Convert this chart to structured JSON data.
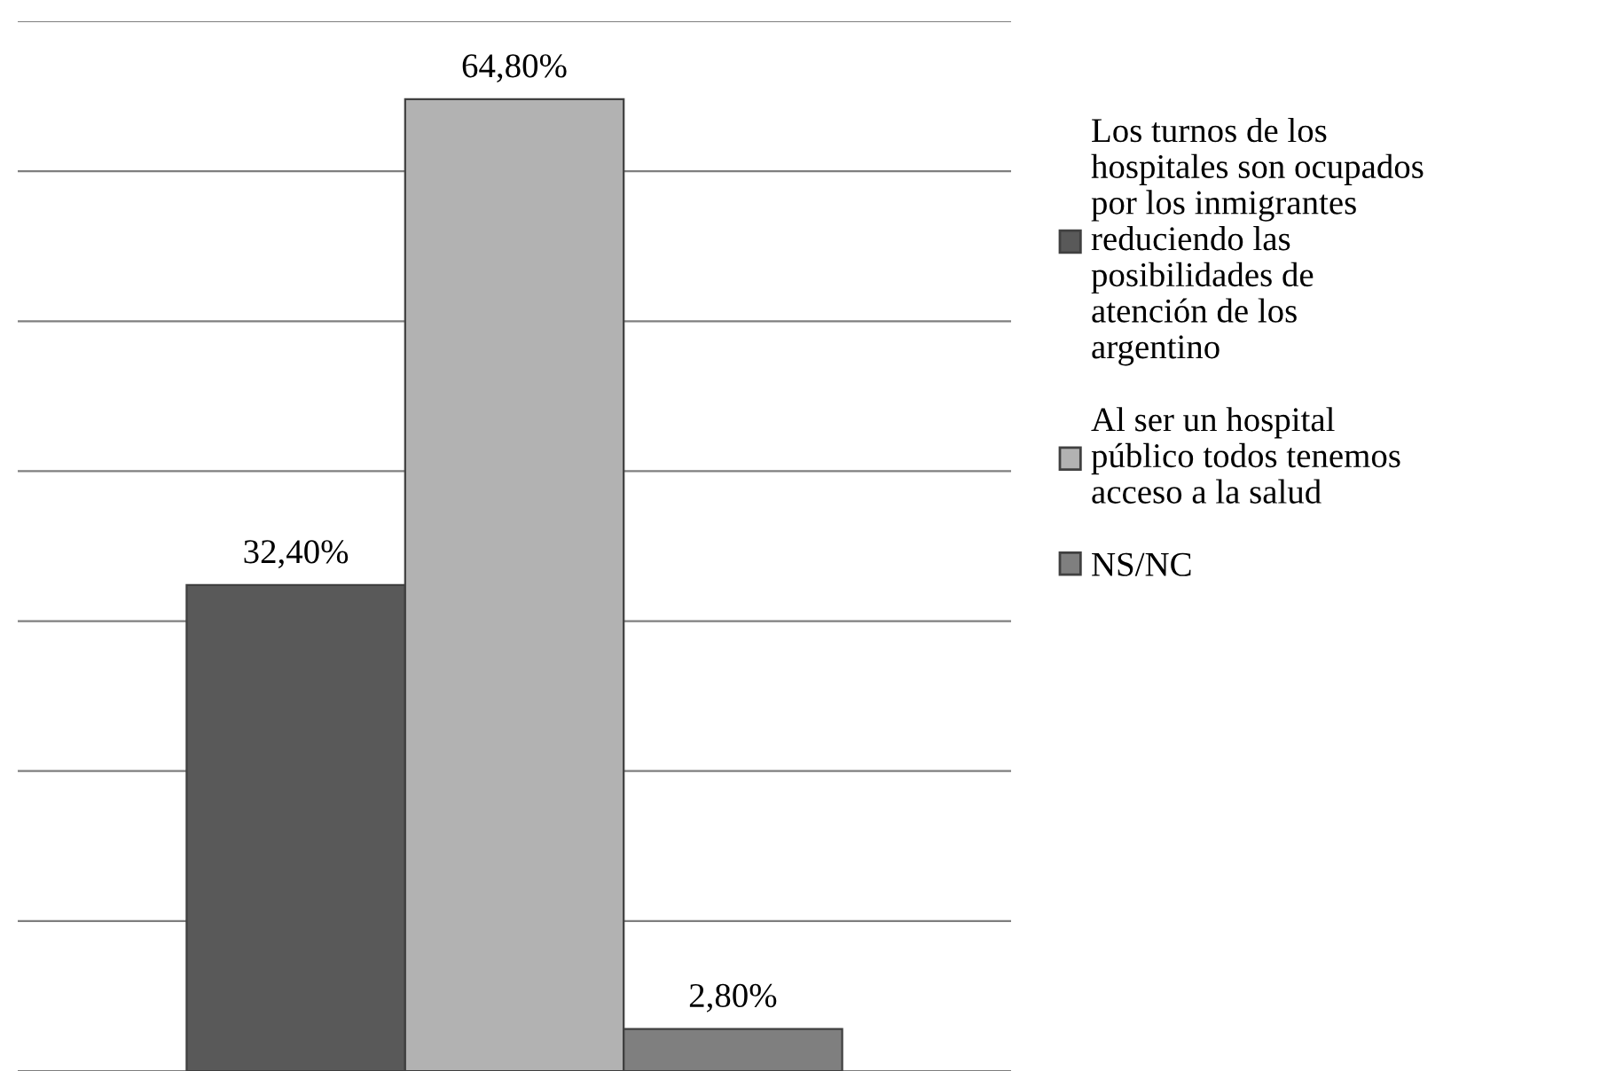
{
  "chart_data": {
    "type": "bar",
    "categories": [
      null
    ],
    "series": [
      {
        "name": "Los turnos de los hospitales son ocupados por los inmigrantes reduciendo las posibilidades de atención de los argentino",
        "color": "#595959",
        "values": [
          32.4
        ],
        "value_labels": [
          "32,40%"
        ]
      },
      {
        "name": "Al ser un hospital público todos tenemos acceso a la salud",
        "color": "#b2b2b2",
        "values": [
          64.8
        ],
        "value_labels": [
          "64,80%"
        ]
      },
      {
        "name": "NS/NC",
        "color": "#7f7f7f",
        "values": [
          2.8
        ],
        "value_labels": [
          "2,80%"
        ]
      }
    ],
    "ylim": [
      0,
      70
    ],
    "yticks": [
      {
        "value": 0,
        "label": null
      },
      {
        "value": 10,
        "label": null
      },
      {
        "value": 20,
        "label": null
      },
      {
        "value": 30,
        "label": null
      },
      {
        "value": 40,
        "label": null
      },
      {
        "value": 50,
        "label": null
      },
      {
        "value": 60,
        "label": null
      },
      {
        "value": 70,
        "label": null
      }
    ],
    "grid": "y",
    "legend": "right"
  }
}
